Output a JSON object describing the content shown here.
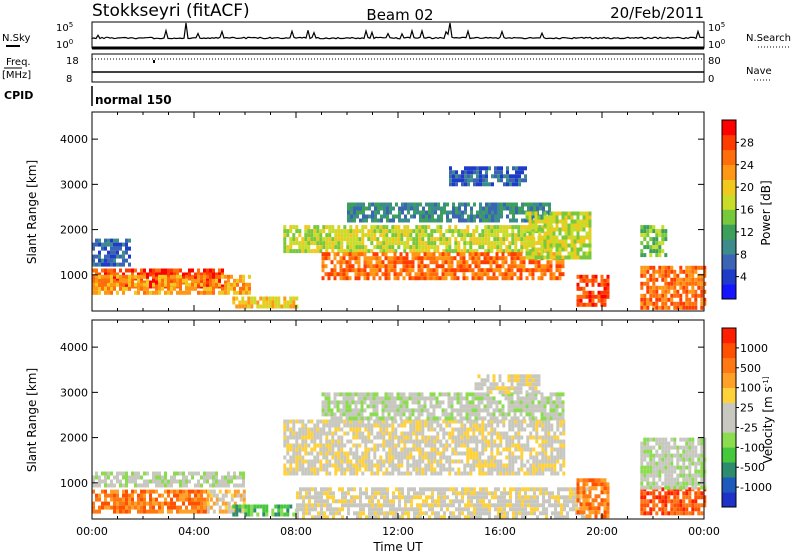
{
  "header": {
    "station": "Stokkseyri (fitACF)",
    "beam": "Beam 02",
    "date": "20/Feb/2011"
  },
  "noise_panel": {
    "left_label": "N.Sky",
    "right_label": "N.Search",
    "tick_top": "10^5",
    "tick_bottom": "10^0"
  },
  "freq_panel": {
    "left_label_1": "Freq.",
    "left_label_2": "[MHz]",
    "left_tick_top": "18",
    "left_tick_bottom": "8",
    "right_label": "Nave",
    "right_tick_top": "80",
    "right_tick_bottom": "0"
  },
  "cpid": {
    "label": "CPID",
    "mode": "normal 150"
  },
  "chart_data": [
    {
      "type": "heatmap",
      "name_in_figure": "power",
      "ylabel": "Slant Range [km]",
      "yticks": [
        "1000",
        "2000",
        "3000",
        "4000"
      ],
      "ylim": [
        200,
        4600
      ],
      "xlim": [
        0,
        24
      ],
      "xticks": [
        "00:00",
        "04:00",
        "08:00",
        "12:00",
        "16:00",
        "20:00",
        "00:00"
      ],
      "colorbar": {
        "label": "Power [dB]",
        "ticks": [
          "4",
          "8",
          "12",
          "16",
          "20",
          "24",
          "28"
        ],
        "colors": [
          "#1414ff",
          "#1e3cc8",
          "#3c64b4",
          "#3c8c8c",
          "#3ca05a",
          "#78c83c",
          "#c8dc28",
          "#f0c81e",
          "#ff9614",
          "#ff6e0a",
          "#ff3c00",
          "#ff0000"
        ]
      },
      "bands": [
        {
          "t": [
            0.0,
            5.2
          ],
          "r": [
            780,
            1140
          ],
          "level": 10
        },
        {
          "t": [
            0.0,
            6.2
          ],
          "r": [
            600,
            1000
          ],
          "level": 8
        },
        {
          "t": [
            0.0,
            1.5
          ],
          "r": [
            1250,
            1800
          ],
          "level": 2
        },
        {
          "t": [
            5.5,
            8.0
          ],
          "r": [
            260,
            520
          ],
          "level": 7
        },
        {
          "t": [
            7.5,
            18.0
          ],
          "r": [
            1500,
            2100
          ],
          "level": 6
        },
        {
          "t": [
            9.0,
            18.5
          ],
          "r": [
            900,
            1500
          ],
          "level": 9
        },
        {
          "t": [
            10.0,
            18.0
          ],
          "r": [
            2200,
            2600
          ],
          "level": 3
        },
        {
          "t": [
            14.0,
            17.0
          ],
          "r": [
            3000,
            3400
          ],
          "level": 2
        },
        {
          "t": [
            17.0,
            19.5
          ],
          "r": [
            1400,
            2400
          ],
          "level": 6
        },
        {
          "t": [
            19.0,
            20.2
          ],
          "r": [
            300,
            1000
          ],
          "level": 10
        },
        {
          "t": [
            21.5,
            24.0
          ],
          "r": [
            300,
            1200
          ],
          "level": 9
        },
        {
          "t": [
            21.5,
            22.5
          ],
          "r": [
            1400,
            2100
          ],
          "level": 5
        }
      ]
    },
    {
      "type": "heatmap",
      "name_in_figure": "velocity",
      "ylabel": "Slant Range [km]",
      "yticks": [
        "1000",
        "2000",
        "3000",
        "4000"
      ],
      "ylim": [
        200,
        4600
      ],
      "xlim": [
        0,
        24
      ],
      "xticks": [
        "00:00",
        "04:00",
        "08:00",
        "12:00",
        "16:00",
        "20:00",
        "00:00"
      ],
      "xlabel": "Time UT",
      "colorbar": {
        "label": "Velocity [m s^-1]",
        "ticks": [
          "1000",
          "500",
          "100",
          "25",
          "-25",
          "-100",
          "-500",
          "-1000"
        ],
        "colors": [
          "#1e32c8",
          "#1e5abe",
          "#2d8c6e",
          "#46c83c",
          "#8cdc50",
          "#c8c8c0",
          "#c8c8c0",
          "#ffd23c",
          "#ffa028",
          "#ff7814",
          "#ff5000",
          "#ff1e00"
        ]
      },
      "bands": [
        {
          "t": [
            0.0,
            6.0
          ],
          "r": [
            900,
            1250
          ],
          "level": 5
        },
        {
          "t": [
            0.0,
            4.5
          ],
          "r": [
            350,
            850
          ],
          "level": 9
        },
        {
          "t": [
            4.5,
            6.0
          ],
          "r": [
            350,
            850
          ],
          "level": 7
        },
        {
          "t": [
            5.5,
            8.0
          ],
          "r": [
            260,
            520
          ],
          "level": 3
        },
        {
          "t": [
            7.5,
            18.5
          ],
          "r": [
            1200,
            2400
          ],
          "level": 6
        },
        {
          "t": [
            9.0,
            18.5
          ],
          "r": [
            2400,
            3000
          ],
          "level": 5
        },
        {
          "t": [
            15.0,
            17.5
          ],
          "r": [
            3000,
            3400
          ],
          "level": 6
        },
        {
          "t": [
            8.0,
            19.5
          ],
          "r": [
            200,
            900
          ],
          "level": 6
        },
        {
          "t": [
            19.0,
            20.2
          ],
          "r": [
            300,
            1100
          ],
          "level": 9
        },
        {
          "t": [
            21.5,
            24.0
          ],
          "r": [
            300,
            900
          ],
          "level": 10
        },
        {
          "t": [
            21.5,
            24.0
          ],
          "r": [
            900,
            2000
          ],
          "level": 5
        }
      ]
    }
  ]
}
